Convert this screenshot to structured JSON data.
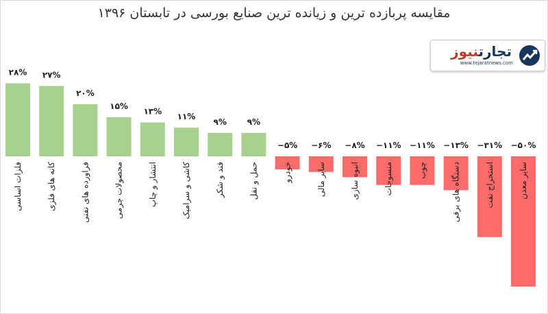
{
  "title": "مقایسه پربازده ترین و زیانده ترین صنایع بورسی در  تابستان ۱۳۹۶",
  "logo": {
    "text_main": "تجارت",
    "text_accent": "نیوز",
    "url": "www.tejaratnews.com",
    "icon": "tejaratnews-logo-icon"
  },
  "colors": {
    "positive": "#a9d18e",
    "negative": "#ff6b6b",
    "title": "#333333"
  },
  "chart_data": {
    "type": "bar",
    "title": "مقایسه پربازده ترین و زیانده ترین صنایع بورسی در  تابستان ۱۳۹۶",
    "categories": [
      "فلزات اساسی",
      "کانه های فلزی",
      "فراورده های نفتی",
      "محصولات چرمی",
      "انتشار و چاپ",
      "کاشی و سرامیک",
      "قند و شکر",
      "حمل و نقل",
      "خودرو",
      "سایر مالی",
      "انبوه سازی",
      "منسوجات",
      "چوب",
      "دستگاه های برقی",
      "استخراج نفت",
      "سایر معدن"
    ],
    "values": [
      28,
      27,
      20,
      15,
      13,
      11,
      9,
      9,
      -5,
      -6,
      -8,
      -11,
      -11,
      -13,
      -31,
      -50
    ],
    "value_labels": [
      "۲۸%",
      "۲۷%",
      "۲۰%",
      "۱۵%",
      "۱۳%",
      "۱۱%",
      "۹%",
      "۹%",
      "−۵%",
      "−۶%",
      "−۸%",
      "−۱۱%",
      "−۱۱%",
      "−۱۳%",
      "−۳۱%",
      "−۵۰%"
    ],
    "ylim": [
      -50,
      28
    ],
    "grid": false,
    "legend": "none"
  }
}
